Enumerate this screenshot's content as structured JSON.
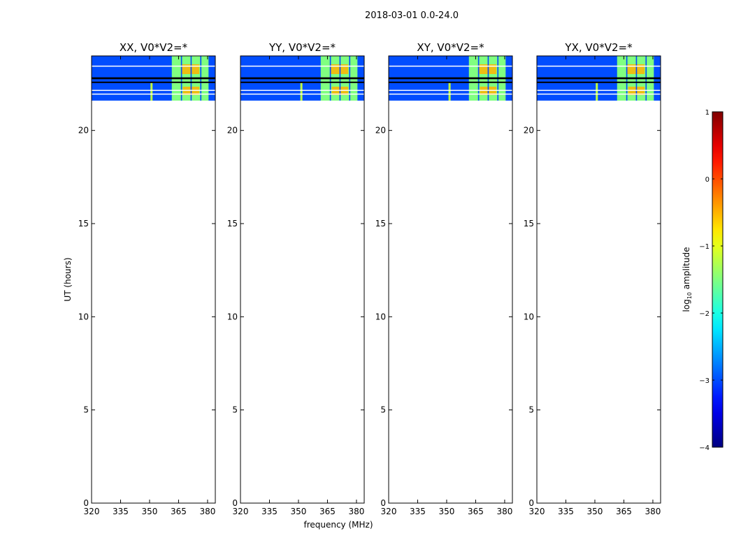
{
  "figure": {
    "suptitle": "2018-03-01 0.0-24.0",
    "xlabel": "frequency (MHz)",
    "ylabel": "UT (hours)",
    "colorbar_label_prefix": "log",
    "colorbar_label_sub": "10",
    "colorbar_label_suffix": " amplitude"
  },
  "chart_data": {
    "type": "heatmap",
    "panels": [
      {
        "title": "XX, V0*V2=*",
        "rfi_line_mhz": 351.0
      },
      {
        "title": "YY, V0*V2=*",
        "rfi_line_mhz": 351.5
      },
      {
        "title": "XY, V0*V2=*",
        "rfi_line_mhz": 351.5
      },
      {
        "title": "YX, V0*V2=*",
        "rfi_line_mhz": 351.0
      }
    ],
    "xlim": [
      320,
      384
    ],
    "ylim": [
      0,
      24
    ],
    "xticks": [
      320,
      335,
      350,
      365,
      380
    ],
    "yticks": [
      0,
      5,
      10,
      15,
      20
    ],
    "data_extent_hours": [
      21.6,
      24.0
    ],
    "data_gaps_hours": [
      [
        22.75,
        22.85
      ],
      [
        22.55,
        22.62
      ]
    ],
    "data_white_lines_hours": [
      23.45,
      22.15,
      21.95
    ],
    "bright_band_mhz": [
      361.5,
      380.5
    ],
    "bright_band_column_gaps_mhz": [
      [
        366.2,
        366.8
      ],
      [
        371.2,
        371.8
      ],
      [
        376.2,
        376.8
      ]
    ],
    "background_log_amplitude": -3.0,
    "band_log_amplitude": -1.5,
    "band_peak_log_amplitude": -0.5,
    "colorbar": {
      "range": [
        -4,
        1
      ],
      "ticks": [
        1,
        0,
        -1,
        -2,
        -3,
        -4
      ],
      "tick_labels": [
        "1",
        "0",
        "−1",
        "−2",
        "−3",
        "−4"
      ],
      "colormap": "jet"
    }
  }
}
